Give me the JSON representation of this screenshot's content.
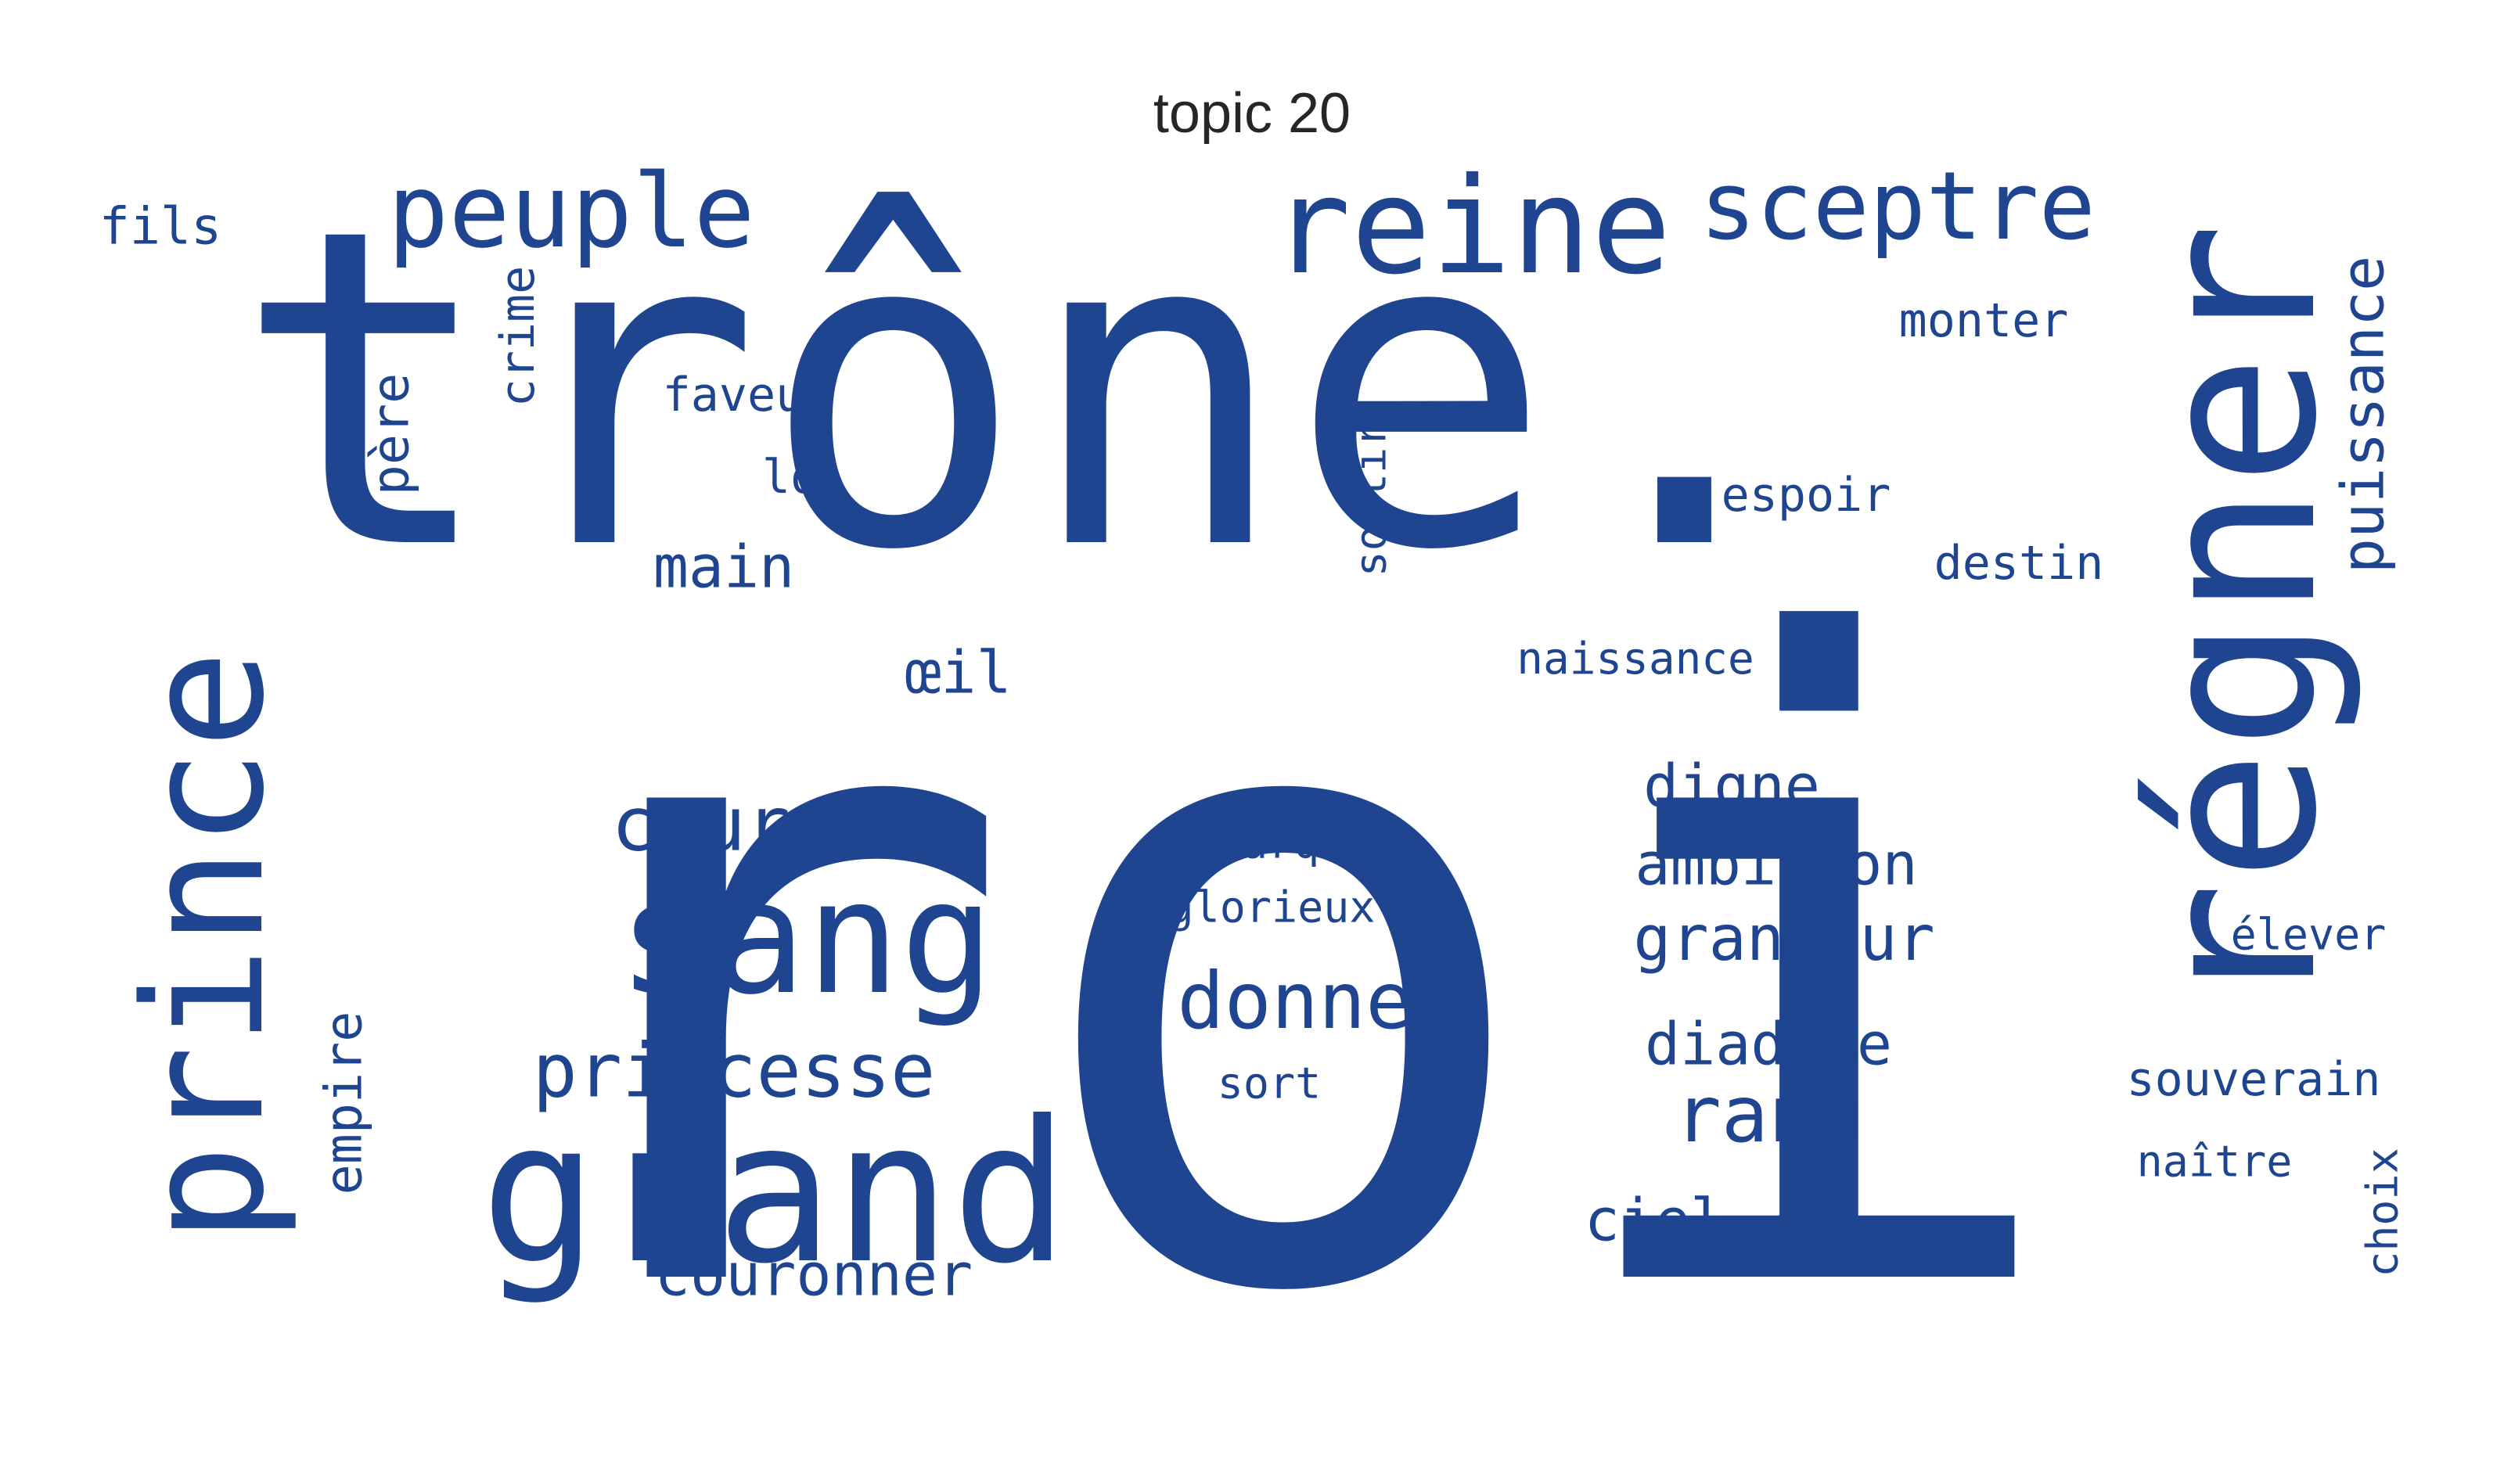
{
  "title": "topic 20",
  "color": "#1f4591",
  "words": [
    {
      "text": "roi"
    },
    {
      "text": "trône."
    },
    {
      "text": "régner"
    },
    {
      "text": "prince"
    },
    {
      "text": "grand"
    },
    {
      "text": "sang"
    },
    {
      "text": "reine"
    },
    {
      "text": "peuple"
    },
    {
      "text": "sceptre"
    },
    {
      "text": "donner"
    },
    {
      "text": "couronne"
    },
    {
      "text": "princesse"
    },
    {
      "text": "rang"
    },
    {
      "text": "puissance"
    },
    {
      "text": "grandeur"
    },
    {
      "text": "ambition"
    },
    {
      "text": "diadème"
    },
    {
      "text": "digne"
    },
    {
      "text": "main"
    },
    {
      "text": "couronner"
    },
    {
      "text": "ciel"
    },
    {
      "text": "œil"
    },
    {
      "text": "empire"
    },
    {
      "text": "père"
    },
    {
      "text": "crime"
    },
    {
      "text": "fils"
    },
    {
      "text": "faveur"
    },
    {
      "text": "loi"
    },
    {
      "text": "sortir"
    },
    {
      "text": "espoir"
    },
    {
      "text": "monter"
    },
    {
      "text": "destin"
    },
    {
      "text": "naissance"
    },
    {
      "text": "monarque"
    },
    {
      "text": "glorieux"
    },
    {
      "text": "sort"
    },
    {
      "text": "élever"
    },
    {
      "text": "souverain"
    },
    {
      "text": "naître"
    },
    {
      "text": "choix"
    }
  ]
}
